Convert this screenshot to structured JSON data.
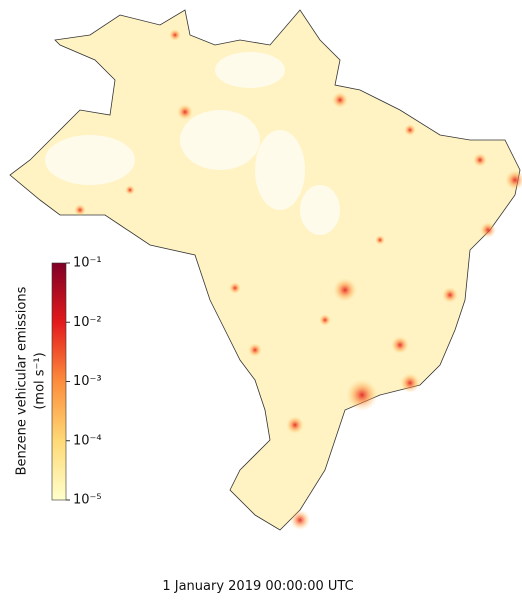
{
  "map": {
    "colorbar": {
      "label": "Benzene vehicular emissions",
      "units": "(mol s⁻¹)",
      "scale": "log",
      "lim": [
        1e-05,
        0.1
      ],
      "ticks": [
        {
          "value": 1e-05,
          "label": "10⁻⁵"
        },
        {
          "value": 0.0001,
          "label": "10⁻⁴"
        },
        {
          "value": 0.001,
          "label": "10⁻³"
        },
        {
          "value": 0.01,
          "label": "10⁻²"
        },
        {
          "value": 0.1,
          "label": "10⁻¹"
        }
      ],
      "colors": [
        "#ffffcc",
        "#fed976",
        "#fd8d3c",
        "#e31a1c",
        "#800026"
      ]
    },
    "timestamp": "1 January 2019 00:00:00 UTC"
  }
}
